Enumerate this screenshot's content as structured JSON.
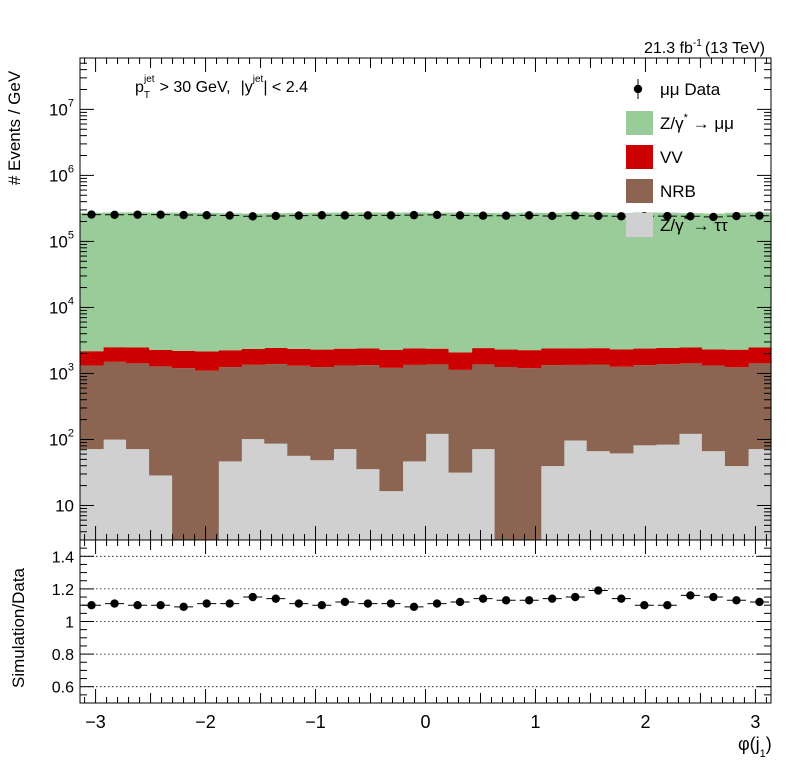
{
  "chart_data": {
    "type": "bar",
    "stacked": true,
    "log_scale_y": true,
    "xlabel": "φ(j",
    "xlabel_sub": "1",
    "ylabel": "# Events / GeV",
    "ratio_ylabel": "Simulation/Data",
    "lumi": {
      "value": "21.3 fb",
      "sup": "-1",
      "energy": "(13 TeV)"
    },
    "cut": {
      "p": "p",
      "p_sub": "T",
      "p_sup": "jet",
      "pt_text": "> 30 GeV,",
      "y_open": "|y",
      "y_sup": "jet",
      "y_text": "| < 2.4"
    },
    "xlim": [
      -3.1416,
      3.1416
    ],
    "ylim": [
      3,
      60000000
    ],
    "ratio_ylim": [
      0.5,
      1.5
    ],
    "x_ticks": [
      "-3",
      "-2",
      "-1",
      "0",
      "1",
      "2",
      "3"
    ],
    "x_tick_values": [
      -3,
      -2,
      -1,
      0,
      1,
      2,
      3
    ],
    "y_ticks": [
      {
        "v": 10,
        "base": "10",
        "exp": ""
      },
      {
        "v": 100,
        "base": "10",
        "exp": "2"
      },
      {
        "v": 1000,
        "base": "10",
        "exp": "3"
      },
      {
        "v": 10000,
        "base": "10",
        "exp": "4"
      },
      {
        "v": 100000,
        "base": "10",
        "exp": "5"
      },
      {
        "v": 1000000,
        "base": "10",
        "exp": "6"
      },
      {
        "v": 10000000,
        "base": "10",
        "exp": "7"
      }
    ],
    "ratio_ticks": [
      "0.6",
      "0.8",
      "1",
      "1.2",
      "1.4"
    ],
    "ratio_tick_values": [
      0.6,
      0.8,
      1.0,
      1.2,
      1.4
    ],
    "n_bins": 30,
    "legend": {
      "position": "top-right",
      "entries": [
        {
          "label": "μμ Data",
          "key": "data",
          "marker": "point"
        },
        {
          "label": "Z/γ",
          "sup": "*",
          "tail": "→ μμ",
          "key": "zmm",
          "marker": "box"
        },
        {
          "label": "VV",
          "key": "vv",
          "marker": "box"
        },
        {
          "label": "NRB",
          "key": "nrb",
          "marker": "box"
        },
        {
          "label": "Z/γ",
          "sup": "*",
          "tail": "→ ττ",
          "key": "ztt",
          "marker": "box"
        }
      ]
    },
    "colors": {
      "zmm": "#99cc99",
      "vv": "#cc0000",
      "nrb": "#8b6452",
      "ztt": "#d0d0d0",
      "data": "#000000"
    },
    "series": [
      {
        "key": "ztt",
        "values": [
          70,
          98,
          70,
          27,
          1,
          1,
          45,
          100,
          85,
          55,
          47,
          70,
          34,
          15,
          45,
          120,
          30,
          70,
          1,
          1,
          38,
          95,
          65,
          60,
          80,
          82,
          120,
          65,
          38,
          70
        ]
      },
      {
        "key": "nrb",
        "values": [
          1250,
          1400,
          1350,
          1250,
          1200,
          1100,
          1200,
          1250,
          1300,
          1250,
          1200,
          1250,
          1300,
          1200,
          1300,
          1250,
          1100,
          1300,
          1250,
          1200,
          1300,
          1250,
          1300,
          1200,
          1250,
          1300,
          1300,
          1250,
          1200,
          1350
        ]
      },
      {
        "key": "vv",
        "values": [
          850,
          1000,
          1050,
          1000,
          1000,
          1050,
          1000,
          1000,
          1050,
          1050,
          1050,
          1050,
          1050,
          1050,
          1050,
          1000,
          950,
          1050,
          1050,
          1050,
          1050,
          1050,
          1050,
          1050,
          1050,
          1050,
          1050,
          1000,
          1050,
          1050
        ]
      },
      {
        "key": "zmm",
        "values": [
          270000,
          272000,
          273000,
          271000,
          270000,
          268000,
          265000,
          262000,
          265000,
          268000,
          270000,
          270000,
          272000,
          271000,
          272000,
          270000,
          271000,
          268000,
          265000,
          270000,
          268000,
          272000,
          270000,
          268000,
          272000,
          270000,
          265000,
          262000,
          270000,
          272000
        ]
      }
    ],
    "data_points": [
      255000,
      253000,
      254000,
      254000,
      251000,
      249000,
      247000,
      240000,
      243000,
      246000,
      249000,
      248000,
      248000,
      248000,
      250000,
      252000,
      248000,
      245000,
      245000,
      248000,
      243000,
      246000,
      243000,
      240000,
      240000,
      242000,
      240000,
      235000,
      242000,
      245000
    ],
    "ratio_values": [
      1.1,
      1.11,
      1.1,
      1.1,
      1.09,
      1.11,
      1.11,
      1.15,
      1.14,
      1.11,
      1.1,
      1.12,
      1.11,
      1.11,
      1.09,
      1.11,
      1.12,
      1.14,
      1.13,
      1.13,
      1.14,
      1.15,
      1.19,
      1.14,
      1.1,
      1.1,
      1.16,
      1.15,
      1.13,
      1.12
    ]
  }
}
